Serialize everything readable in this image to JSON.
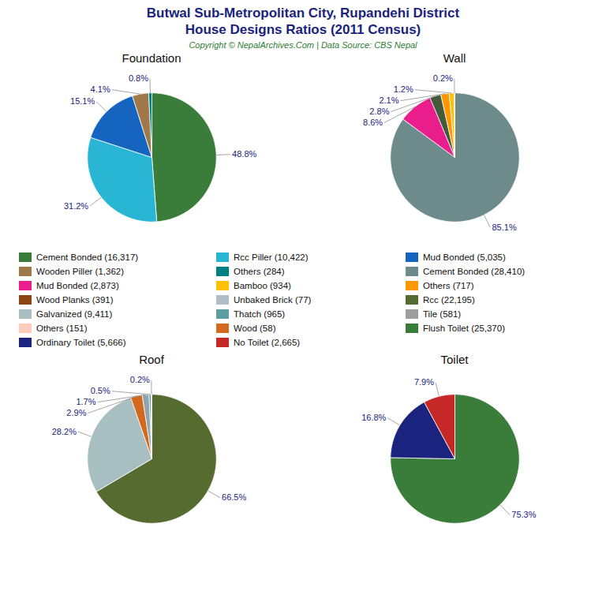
{
  "title": "Butwal Sub-Metropolitan City, Rupandehi District",
  "subtitle": "House Designs Ratios (2011 Census)",
  "annotations": [
    "Copyright © NepalArchives.Com | Data Source: CBS Nepal"
  ],
  "chart_data": [
    {
      "type": "pie",
      "title": "Foundation",
      "values": [
        48.8,
        31.2,
        15.1,
        4.1,
        0.8
      ],
      "value_labels": [
        "48.8%",
        "31.2%",
        "15.1%",
        "4.1%",
        "0.8%"
      ],
      "colors": [
        "#3a7d3a",
        "#29b6d4",
        "#1565c0",
        "#a0784a",
        "#008080"
      ],
      "data_labels": true
    },
    {
      "type": "pie",
      "title": "Wall",
      "values": [
        85.1,
        8.6,
        2.8,
        2.1,
        1.2,
        0.2
      ],
      "value_labels": [
        "85.1%",
        "8.6%",
        "2.8%",
        "2.1%",
        "1.2%",
        "0.2%"
      ],
      "colors": [
        "#6e8b8b",
        "#e91e8c",
        "#455a3a",
        "#ff9800",
        "#ffc107",
        "#8B6914"
      ],
      "data_labels": true
    },
    {
      "type": "pie",
      "title": "Roof",
      "values": [
        66.5,
        28.2,
        2.9,
        1.7,
        0.5,
        0.2
      ],
      "value_labels": [
        "66.5%",
        "28.2%",
        "2.9%",
        "1.7%",
        "0.5%",
        "0.2%"
      ],
      "colors": [
        "#556b2f",
        "#a8bfc2",
        "#d2691e",
        "#90a4ae",
        "#5f9ea0",
        "#c0c0c0"
      ],
      "data_labels": true
    },
    {
      "type": "pie",
      "title": "Toilet",
      "values": [
        75.3,
        16.8,
        7.9
      ],
      "value_labels": [
        "75.3%",
        "16.8%",
        "7.9%"
      ],
      "colors": [
        "#3a7d3a",
        "#1a237e",
        "#c62828"
      ],
      "data_labels": true
    }
  ],
  "legend_columns": [
    [
      {
        "name": "Cement Bonded (16,317)",
        "color": "#3a7d3a"
      },
      {
        "name": "Wooden Piller (1,362)",
        "color": "#a0784a"
      },
      {
        "name": "Mud Bonded (2,873)",
        "color": "#e91e8c"
      },
      {
        "name": "Wood Planks (391)",
        "color": "#8B4513"
      },
      {
        "name": "Galvanized (9,411)",
        "color": "#a8bfc2"
      },
      {
        "name": "Others (151)",
        "color": "#ffccbc"
      },
      {
        "name": "Ordinary Toilet (5,666)",
        "color": "#1a237e"
      }
    ],
    [
      {
        "name": "Rcc Piller (10,422)",
        "color": "#29b6d4"
      },
      {
        "name": "Others (284)",
        "color": "#008080"
      },
      {
        "name": "Bamboo (934)",
        "color": "#ffc107"
      },
      {
        "name": "Unbaked Brick (77)",
        "color": "#b0bec5"
      },
      {
        "name": "Thatch (965)",
        "color": "#5f9ea0"
      },
      {
        "name": "Wood (58)",
        "color": "#d2691e"
      },
      {
        "name": "No Toilet (2,665)",
        "color": "#c62828"
      }
    ],
    [
      {
        "name": "Mud Bonded (5,035)",
        "color": "#1565c0"
      },
      {
        "name": "Cement Bonded (28,410)",
        "color": "#6e8b8b"
      },
      {
        "name": "Others (717)",
        "color": "#ff9800"
      },
      {
        "name": "Rcc (22,195)",
        "color": "#556b2f"
      },
      {
        "name": "Tile (581)",
        "color": "#9e9e9e"
      },
      {
        "name": "Flush Toilet (25,370)",
        "color": "#3a7d3a"
      }
    ]
  ]
}
